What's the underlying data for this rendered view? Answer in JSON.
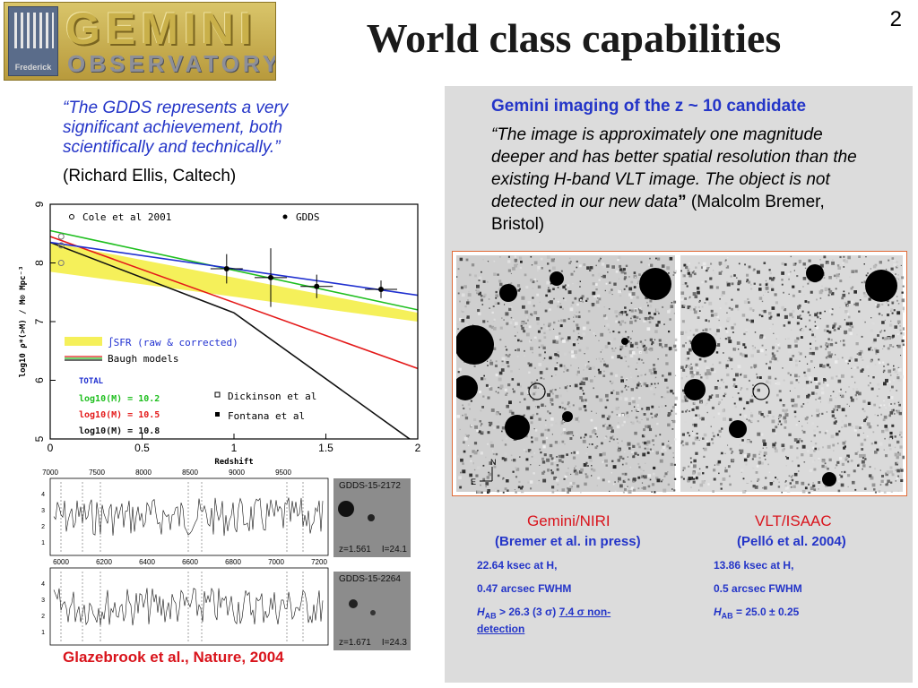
{
  "header": {
    "logo_text_1": "GEMINI",
    "logo_text_2": "OBSERVATORY",
    "logo_tag": "Frederick",
    "title": "World class capabilities",
    "page_number": "2"
  },
  "left": {
    "quote": "“The GDDS represents a very significant achievement, both scientifically and technically.”",
    "quote_attribution": "(Richard Ellis, Caltech)",
    "reference": "Glazebrook et al., Nature, 2004"
  },
  "chart_data": {
    "type": "line",
    "xlabel": "Redshift",
    "ylabel": "log10 ρ*(>M) / M⊙ Mpc⁻³",
    "xlim": [
      0,
      2
    ],
    "ylim": [
      5,
      9
    ],
    "x_ticks": [
      "0",
      "0.5",
      "1",
      "1.5",
      "2"
    ],
    "y_ticks": [
      "5",
      "6",
      "7",
      "8",
      "9"
    ],
    "legend_top": [
      "Cole et al 2001",
      "GDDS"
    ],
    "legend_models": [
      "∫SFR (raw & corrected)",
      "Baugh models"
    ],
    "legend_bottom": [
      "Dickinson et al",
      "Fontana et al"
    ],
    "total_label": "TOTAL",
    "mass_labels": [
      {
        "text": "log10(M) = 10.2",
        "color": "#1fbf1f"
      },
      {
        "text": "log10(M) = 10.5",
        "color": "#e41a1a"
      },
      {
        "text": "log10(M) = 10.8",
        "color": "#111111"
      }
    ],
    "series": [
      {
        "name": "log10(M) = 10.2",
        "color": "#1fbf1f",
        "x": [
          0,
          2
        ],
        "y": [
          8.55,
          7.2
        ]
      },
      {
        "name": "log10(M) = 10.5",
        "color": "#e41a1a",
        "x": [
          0,
          2
        ],
        "y": [
          8.45,
          6.2
        ]
      },
      {
        "name": "log10(M) = 10.8",
        "color": "#111111",
        "x": [
          0,
          1,
          2
        ],
        "y": [
          8.35,
          7.15,
          4.9
        ]
      },
      {
        "name": "Baugh models",
        "color": "#2030d0",
        "x": [
          0,
          2
        ],
        "y": [
          8.35,
          7.45
        ]
      }
    ],
    "sfr_band": {
      "x": [
        0,
        2
      ],
      "upper": [
        8.35,
        7.15
      ],
      "lower": [
        7.85,
        7.0
      ]
    },
    "points_gdds": [
      {
        "x": 0.96,
        "y": 7.9,
        "err": 0.25
      },
      {
        "x": 1.2,
        "y": 7.75,
        "err": 0.5
      },
      {
        "x": 1.45,
        "y": 7.6,
        "err": 0.2
      },
      {
        "x": 1.8,
        "y": 7.55,
        "err": 0.15
      }
    ],
    "points_cole": [
      {
        "x": 0.05,
        "y": 8.45
      },
      {
        "x": 0.05,
        "y": 8.3
      },
      {
        "x": 0.05,
        "y": 8.0
      }
    ]
  },
  "spectra": {
    "top_axis_ticks": [
      "7000",
      "7500",
      "8000",
      "8500",
      "9000",
      "9500"
    ],
    "mid_axis_ticks": [
      "6000",
      "6200",
      "6400",
      "6600",
      "6800",
      "7000",
      "7200"
    ],
    "thumbs": [
      {
        "label": "GDDS-15-2172",
        "z": "z=1.561",
        "I": "I=24.1"
      },
      {
        "label": "GDDS-15-2264",
        "z": "z=1.671",
        "I": "I=24.3"
      }
    ]
  },
  "right": {
    "heading": "Gemini imaging of the z ~ 10 candidate",
    "quote_italic": "“The image is approximately one magnitude deeper and has better spatial resolution than the existing H-band VLT image. The object is not detected in our new data",
    "quote_close": "”",
    "quote_attribution": " (Malcolm Bremer, Bristol)",
    "compass_n": "N",
    "compass_e": "E"
  },
  "captions": {
    "left_title": "Gemini/NIRI",
    "left_sub": "(Bremer et al. in press)",
    "right_title": "VLT/ISAAC",
    "right_sub": "(Pelló et al. 2004)",
    "left_specs": [
      "22.64 ksec at H,",
      "0.47 arcsec FWHM",
      "H",
      "AB",
      " > 26.3 (3 σ) ",
      "7.4 σ  non-detection"
    ],
    "right_specs": [
      "13.86 ksec at H,",
      "0.5 arcsec FWHM",
      "H",
      "AB",
      " = 25.0 ± 0.25"
    ]
  }
}
